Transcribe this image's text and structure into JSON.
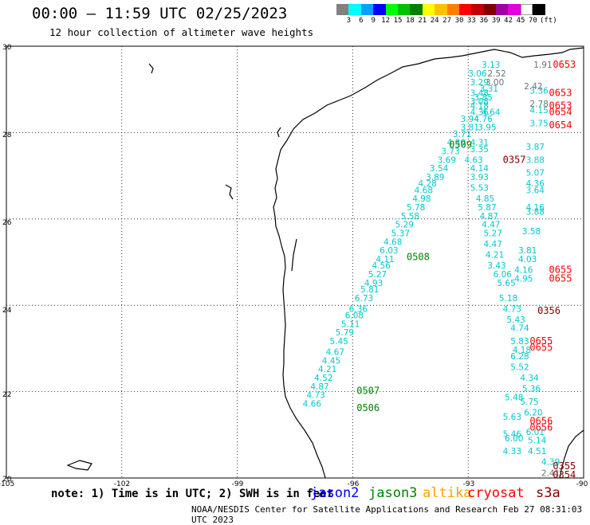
{
  "header": {
    "title": "00:00 – 11:59 UTC 02/25/2023",
    "subtitle": "12 hour collection of altimeter wave heights"
  },
  "legend": {
    "colors": [
      "#808080",
      "#00ffff",
      "#00a0ff",
      "#0000ff",
      "#00ff00",
      "#00c000",
      "#008000",
      "#ffff00",
      "#ffc000",
      "#ff8000",
      "#ff0000",
      "#c00000",
      "#800000",
      "#a000a0",
      "#e000e0",
      "#ffffff",
      "#000000"
    ],
    "labels": [
      "3",
      "6",
      "9",
      "12",
      "15",
      "18",
      "21",
      "24",
      "27",
      "30",
      "33",
      "36",
      "39",
      "42",
      "45",
      "70",
      "(ft)"
    ]
  },
  "axes": {
    "x_ticks": [
      "-105",
      "-102",
      "-99",
      "-96",
      "-93",
      "-90"
    ],
    "y_ticks": [
      "30",
      "28",
      "26",
      "24",
      "22",
      "20"
    ]
  },
  "chart_data": {
    "type": "map",
    "x_range": [
      -105,
      -90
    ],
    "y_range": [
      20,
      30
    ],
    "grid": true,
    "tracks": [
      {
        "satellite": "jason3",
        "time": "0509",
        "lon": -93.5,
        "lat": 27.65
      },
      {
        "satellite": "jason3",
        "time": "0508",
        "lon": -94.6,
        "lat": 25.05
      },
      {
        "satellite": "jason3",
        "time": "0507",
        "lon": -95.9,
        "lat": 21.95
      },
      {
        "satellite": "jason3",
        "time": "0506",
        "lon": -95.9,
        "lat": 21.55
      },
      {
        "satellite": "s3a",
        "time": "0357",
        "lon": -92.1,
        "lat": 27.3
      },
      {
        "satellite": "s3a",
        "time": "0356",
        "lon": -91.2,
        "lat": 23.8
      },
      {
        "satellite": "s3a",
        "time": "0355",
        "lon": -90.8,
        "lat": 20.2
      },
      {
        "satellite": "s3a",
        "time": "0354",
        "lon": -90.8,
        "lat": 20.0
      },
      {
        "satellite": "cryosat",
        "time": "0653",
        "lon": -90.8,
        "lat": 29.5
      },
      {
        "satellite": "cryosat",
        "time": "0653",
        "lon": -90.9,
        "lat": 28.85
      },
      {
        "satellite": "cryosat",
        "time": "0653",
        "lon": -90.9,
        "lat": 28.55
      },
      {
        "satellite": "cryosat",
        "time": "0654",
        "lon": -90.9,
        "lat": 28.4
      },
      {
        "satellite": "cryosat",
        "time": "0654",
        "lon": -90.9,
        "lat": 28.1
      },
      {
        "satellite": "cryosat",
        "time": "0655",
        "lon": -90.9,
        "lat": 24.75
      },
      {
        "satellite": "cryosat",
        "time": "0655",
        "lon": -90.9,
        "lat": 24.55
      },
      {
        "satellite": "cryosat",
        "time": "0655",
        "lon": -91.4,
        "lat": 23.1
      },
      {
        "satellite": "cryosat",
        "time": "0655",
        "lon": -91.4,
        "lat": 22.95
      },
      {
        "satellite": "cryosat",
        "time": "0656",
        "lon": -91.4,
        "lat": 21.25
      },
      {
        "satellite": "cryosat",
        "time": "0656",
        "lon": -91.4,
        "lat": 21.1
      }
    ],
    "swh": [
      {
        "v": "3.13",
        "lon": -92.65,
        "lat": 29.5,
        "c": "#00c8d0"
      },
      {
        "v": "3.06",
        "lon": -93.0,
        "lat": 29.3,
        "c": "#00c8d0"
      },
      {
        "v": "2.52",
        "lon": -92.5,
        "lat": 29.3,
        "c": "#707070"
      },
      {
        "v": "3.00",
        "lon": -92.55,
        "lat": 29.1,
        "c": "#707070"
      },
      {
        "v": "3.29",
        "lon": -92.95,
        "lat": 29.1,
        "c": "#00c8d0"
      },
      {
        "v": "3.31",
        "lon": -92.7,
        "lat": 28.95,
        "c": "#00c8d0"
      },
      {
        "v": "3.48",
        "lon": -92.95,
        "lat": 28.85,
        "c": "#00c8d0"
      },
      {
        "v": "3.85",
        "lon": -92.85,
        "lat": 28.75,
        "c": "#00c8d0"
      },
      {
        "v": "3.08",
        "lon": -92.95,
        "lat": 28.65,
        "c": "#00c8d0"
      },
      {
        "v": "4.18",
        "lon": -92.95,
        "lat": 28.55,
        "c": "#00c8d0"
      },
      {
        "v": "4.36",
        "lon": -92.95,
        "lat": 28.4,
        "c": "#00c8d0"
      },
      {
        "v": "4.64",
        "lon": -92.65,
        "lat": 28.4,
        "c": "#00c8d0"
      },
      {
        "v": "3.94",
        "lon": -93.2,
        "lat": 28.25,
        "c": "#00c8d0"
      },
      {
        "v": "4.76",
        "lon": -92.85,
        "lat": 28.25,
        "c": "#00c8d0"
      },
      {
        "v": "3.81",
        "lon": -93.2,
        "lat": 28.05,
        "c": "#00c8d0"
      },
      {
        "v": "3.95",
        "lon": -92.75,
        "lat": 28.05,
        "c": "#00c8d0"
      },
      {
        "v": "3.71",
        "lon": -93.4,
        "lat": 27.9,
        "c": "#00c8d0"
      },
      {
        "v": "4.30",
        "lon": -93.55,
        "lat": 27.7,
        "c": "#00c8d0"
      },
      {
        "v": "4.31",
        "lon": -92.95,
        "lat": 27.7,
        "c": "#00c8d0"
      },
      {
        "v": "3.73",
        "lon": -93.7,
        "lat": 27.5,
        "c": "#00c8d0"
      },
      {
        "v": "3.35",
        "lon": -92.95,
        "lat": 27.55,
        "c": "#00c8d0"
      },
      {
        "v": "3.69",
        "lon": -93.8,
        "lat": 27.3,
        "c": "#00c8d0"
      },
      {
        "v": "4.63",
        "lon": -93.1,
        "lat": 27.3,
        "c": "#00c8d0"
      },
      {
        "v": "3.54",
        "lon": -94.0,
        "lat": 27.1,
        "c": "#00c8d0"
      },
      {
        "v": "4.14",
        "lon": -92.95,
        "lat": 27.1,
        "c": "#00c8d0"
      },
      {
        "v": "3.89",
        "lon": -94.1,
        "lat": 26.9,
        "c": "#00c8d0"
      },
      {
        "v": "3.93",
        "lon": -92.95,
        "lat": 26.9,
        "c": "#00c8d0"
      },
      {
        "v": "4.28",
        "lon": -94.3,
        "lat": 26.75,
        "c": "#00c8d0"
      },
      {
        "v": "5.53",
        "lon": -92.95,
        "lat": 26.65,
        "c": "#00c8d0"
      },
      {
        "v": "4.68",
        "lon": -94.4,
        "lat": 26.6,
        "c": "#00c8d0"
      },
      {
        "v": "4.98",
        "lon": -94.45,
        "lat": 26.4,
        "c": "#00c8d0"
      },
      {
        "v": "4.85",
        "lon": -92.8,
        "lat": 26.4,
        "c": "#00c8d0"
      },
      {
        "v": "5.78",
        "lon": -94.6,
        "lat": 26.2,
        "c": "#00c8d0"
      },
      {
        "v": "5.87",
        "lon": -92.75,
        "lat": 26.2,
        "c": "#00c8d0"
      },
      {
        "v": "5.58",
        "lon": -94.75,
        "lat": 26.0,
        "c": "#00c8d0"
      },
      {
        "v": "4.87",
        "lon": -92.7,
        "lat": 26.0,
        "c": "#00c8d0"
      },
      {
        "v": "5.29",
        "lon": -94.9,
        "lat": 25.8,
        "c": "#00c8d0"
      },
      {
        "v": "4.47",
        "lon": -92.65,
        "lat": 25.8,
        "c": "#00c8d0"
      },
      {
        "v": "5.37",
        "lon": -95.0,
        "lat": 25.6,
        "c": "#00c8d0"
      },
      {
        "v": "5.27",
        "lon": -92.6,
        "lat": 25.6,
        "c": "#00c8d0"
      },
      {
        "v": "4.68",
        "lon": -95.2,
        "lat": 25.4,
        "c": "#00c8d0"
      },
      {
        "v": "4.47",
        "lon": -92.6,
        "lat": 25.35,
        "c": "#00c8d0"
      },
      {
        "v": "6.03",
        "lon": -95.3,
        "lat": 25.2,
        "c": "#00c8d0"
      },
      {
        "v": "4.21",
        "lon": -92.55,
        "lat": 25.1,
        "c": "#00c8d0"
      },
      {
        "v": "4.11",
        "lon": -95.4,
        "lat": 25.0,
        "c": "#00c8d0"
      },
      {
        "v": "3.43",
        "lon": -92.5,
        "lat": 24.85,
        "c": "#00c8d0"
      },
      {
        "v": "4.56",
        "lon": -95.5,
        "lat": 24.85,
        "c": "#00c8d0"
      },
      {
        "v": "5.27",
        "lon": -95.6,
        "lat": 24.65,
        "c": "#00c8d0"
      },
      {
        "v": "6.06",
        "lon": -92.35,
        "lat": 24.65,
        "c": "#00c8d0"
      },
      {
        "v": "4.93",
        "lon": -95.7,
        "lat": 24.45,
        "c": "#00c8d0"
      },
      {
        "v": "5.65",
        "lon": -92.25,
        "lat": 24.45,
        "c": "#00c8d0"
      },
      {
        "v": "5.81",
        "lon": -95.8,
        "lat": 24.3,
        "c": "#00c8d0"
      },
      {
        "v": "5.18",
        "lon": -92.2,
        "lat": 24.1,
        "c": "#00c8d0"
      },
      {
        "v": "6.73",
        "lon": -95.95,
        "lat": 24.1,
        "c": "#00c8d0"
      },
      {
        "v": "6.36",
        "lon": -96.1,
        "lat": 23.85,
        "c": "#00c8d0"
      },
      {
        "v": "4.73",
        "lon": -92.1,
        "lat": 23.85,
        "c": "#00c8d0"
      },
      {
        "v": "6.08",
        "lon": -96.2,
        "lat": 23.7,
        "c": "#00c8d0"
      },
      {
        "v": "5.43",
        "lon": -92.0,
        "lat": 23.6,
        "c": "#00c8d0"
      },
      {
        "v": "5.11",
        "lon": -96.3,
        "lat": 23.5,
        "c": "#00c8d0"
      },
      {
        "v": "4.74",
        "lon": -91.9,
        "lat": 23.4,
        "c": "#00c8d0"
      },
      {
        "v": "5.79",
        "lon": -96.45,
        "lat": 23.3,
        "c": "#00c8d0"
      },
      {
        "v": "5.83",
        "lon": -91.9,
        "lat": 23.1,
        "c": "#00c8d0"
      },
      {
        "v": "5.45",
        "lon": -96.6,
        "lat": 23.1,
        "c": "#00c8d0"
      },
      {
        "v": "4.67",
        "lon": -96.7,
        "lat": 22.85,
        "c": "#00c8d0"
      },
      {
        "v": "4.18",
        "lon": -91.85,
        "lat": 22.9,
        "c": "#00c8d0"
      },
      {
        "v": "4.45",
        "lon": -96.8,
        "lat": 22.65,
        "c": "#00c8d0"
      },
      {
        "v": "6.28",
        "lon": -91.9,
        "lat": 22.75,
        "c": "#00c8d0"
      },
      {
        "v": "4.21",
        "lon": -96.9,
        "lat": 22.45,
        "c": "#00c8d0"
      },
      {
        "v": "5.52",
        "lon": -91.9,
        "lat": 22.5,
        "c": "#00c8d0"
      },
      {
        "v": "4.52",
        "lon": -97.0,
        "lat": 22.25,
        "c": "#00c8d0"
      },
      {
        "v": "4.34",
        "lon": -91.65,
        "lat": 22.25,
        "c": "#00c8d0"
      },
      {
        "v": "4.87",
        "lon": -97.1,
        "lat": 22.05,
        "c": "#00c8d0"
      },
      {
        "v": "5.36",
        "lon": -91.6,
        "lat": 22.0,
        "c": "#00c8d0"
      },
      {
        "v": "4.73",
        "lon": -97.2,
        "lat": 21.85,
        "c": "#00c8d0"
      },
      {
        "v": "5.48",
        "lon": -92.05,
        "lat": 21.8,
        "c": "#00c8d0"
      },
      {
        "v": "4.66",
        "lon": -97.3,
        "lat": 21.65,
        "c": "#00c8d0"
      },
      {
        "v": "5.75",
        "lon": -91.65,
        "lat": 21.7,
        "c": "#00c8d0"
      },
      {
        "v": "6.20",
        "lon": -91.55,
        "lat": 21.45,
        "c": "#00c8d0"
      },
      {
        "v": "5.63",
        "lon": -92.1,
        "lat": 21.35,
        "c": "#00c8d0"
      },
      {
        "v": "6.01",
        "lon": -91.5,
        "lat": 21.0,
        "c": "#00c8d0"
      },
      {
        "v": "5.46",
        "lon": -92.1,
        "lat": 20.95,
        "c": "#00c8d0"
      },
      {
        "v": "6.00",
        "lon": -92.05,
        "lat": 20.85,
        "c": "#00c8d0"
      },
      {
        "v": "5.14",
        "lon": -91.45,
        "lat": 20.8,
        "c": "#00c8d0"
      },
      {
        "v": "4.33",
        "lon": -92.1,
        "lat": 20.55,
        "c": "#00c8d0"
      },
      {
        "v": "4.51",
        "lon": -91.45,
        "lat": 20.55,
        "c": "#00c8d0"
      },
      {
        "v": "4.39",
        "lon": -91.1,
        "lat": 20.3,
        "c": "#00c8d0"
      },
      {
        "v": "2.41",
        "lon": -91.1,
        "lat": 20.05,
        "c": "#707070"
      },
      {
        "v": "3.75",
        "lon": -91.4,
        "lat": 28.15,
        "c": "#00c8d0"
      },
      {
        "v": "3.36",
        "lon": -91.4,
        "lat": 28.9,
        "c": "#00c8d0"
      },
      {
        "v": "2.78",
        "lon": -91.4,
        "lat": 28.6,
        "c": "#707070"
      },
      {
        "v": "4.15",
        "lon": -91.4,
        "lat": 28.45,
        "c": "#00c8d0"
      },
      {
        "v": "3.87",
        "lon": -91.5,
        "lat": 27.6,
        "c": "#00c8d0"
      },
      {
        "v": "3.88",
        "lon": -91.5,
        "lat": 27.3,
        "c": "#00c8d0"
      },
      {
        "v": "5.07",
        "lon": -91.5,
        "lat": 27.0,
        "c": "#00c8d0"
      },
      {
        "v": "4.36",
        "lon": -91.5,
        "lat": 26.75,
        "c": "#00c8d0"
      },
      {
        "v": "3.64",
        "lon": -91.5,
        "lat": 26.6,
        "c": "#00c8d0"
      },
      {
        "v": "4.16",
        "lon": -91.5,
        "lat": 26.2,
        "c": "#00c8d0"
      },
      {
        "v": "3.88",
        "lon": -91.5,
        "lat": 26.1,
        "c": "#00c8d0"
      },
      {
        "v": "3.58",
        "lon": -91.6,
        "lat": 25.65,
        "c": "#00c8d0"
      },
      {
        "v": "3.81",
        "lon": -91.7,
        "lat": 25.2,
        "c": "#00c8d0"
      },
      {
        "v": "4.03",
        "lon": -91.7,
        "lat": 25.0,
        "c": "#00c8d0"
      },
      {
        "v": "4.16",
        "lon": -91.8,
        "lat": 24.75,
        "c": "#00c8d0"
      },
      {
        "v": "4.95",
        "lon": -91.8,
        "lat": 24.55,
        "c": "#00c8d0"
      },
      {
        "v": "2.42",
        "lon": -91.55,
        "lat": 29.0,
        "c": "#707070"
      },
      {
        "v": "1.91",
        "lon": -91.3,
        "lat": 29.5,
        "c": "#707070"
      }
    ]
  },
  "footer": {
    "note": "note:  1) Time is in UTC;  2) SWH is in feet",
    "satellites": [
      {
        "name": "jason2",
        "color": "#0000ff"
      },
      {
        "name": "jason3",
        "color": "#008000"
      },
      {
        "name": "altika",
        "color": "#ffa000"
      },
      {
        "name": "cryosat",
        "color": "#ff0000"
      },
      {
        "name": "s3a",
        "color": "#800000"
      }
    ],
    "credit": "NOAA/NESDIS Center for Satellite Applications and Research    Feb 27 08:31:03 UTC 2023"
  }
}
